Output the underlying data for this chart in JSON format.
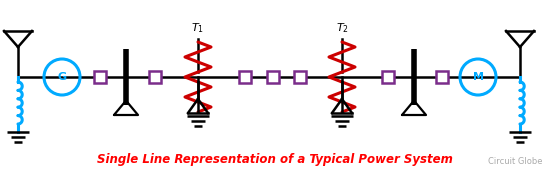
{
  "title": "Single Line Representation of a Typical Power System",
  "title_color": "#FF0000",
  "title_fontsize": 8.5,
  "watermark": "Circuit Globe",
  "watermark_color": "#aaaaaa",
  "bg_color": "#ffffff",
  "line_color": "#000000",
  "cb_color": "#7B2D8B",
  "transformer_color": "#CC0000",
  "inductor_color": "#00AAFF",
  "generator_color": "#00AAFF",
  "figw": 5.5,
  "figh": 1.72,
  "dpi": 100
}
